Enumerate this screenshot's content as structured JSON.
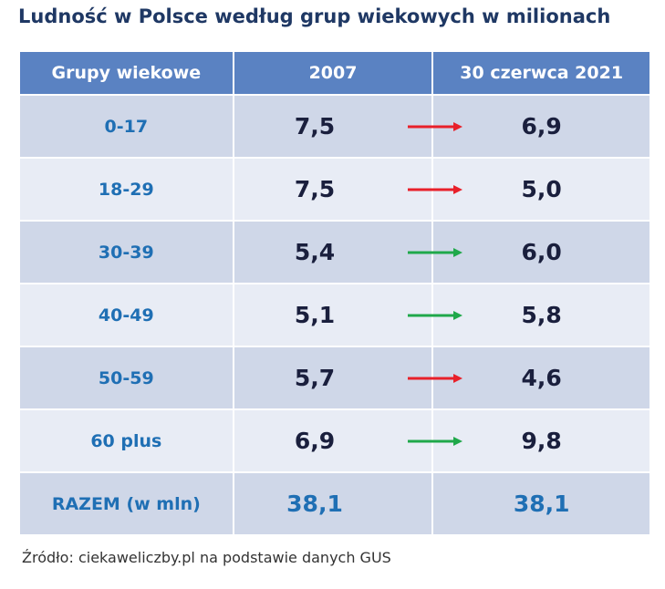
{
  "title": "Ludność w Polsce według grup wiekowych w milionach",
  "table": {
    "header": [
      "Grupy wiekowe",
      "2007",
      "30 czerwca 2021"
    ],
    "rows": [
      [
        "0-17",
        "7,5",
        "6,9"
      ],
      [
        "18-29",
        "7,5",
        "5,0"
      ],
      [
        "30-39",
        "5,4",
        "6,0"
      ],
      [
        "40-49",
        "5,1",
        "5,8"
      ],
      [
        "50-59",
        "5,7",
        "4,6"
      ],
      [
        "60 plus",
        "6,9",
        "9,8"
      ],
      [
        "RAZEM (w mln)",
        "38,1",
        "38,1"
      ]
    ]
  },
  "source": "Źródło: ciekaweliczby.pl na podstawie danych GUS"
}
